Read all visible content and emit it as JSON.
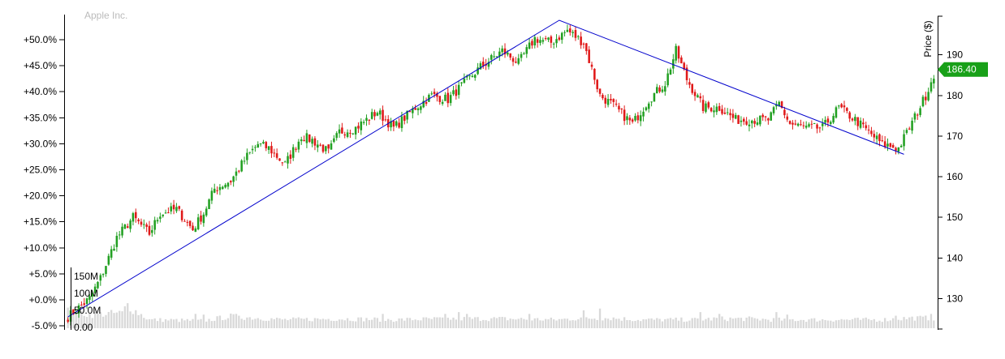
{
  "chart_data": {
    "type": "candlestick",
    "title": "Apple Inc.",
    "ylabel_right": "Price ($)",
    "ylim_price": [
      122.5,
      199.5
    ],
    "ylim_percent": [
      -5.0,
      54.0
    ],
    "left_ticks": [
      "+50.0%",
      "+45.0%",
      "+40.0%",
      "+35.0%",
      "+30.0%",
      "+25.0%",
      "+20.0%",
      "+15.0%",
      "+10.0%",
      "+5.0%",
      "+0.0%",
      "-5.0%"
    ],
    "right_ticks": [
      190,
      180,
      170,
      160,
      150,
      140,
      130
    ],
    "volume_ticks": [
      "150M",
      "100M",
      "50.0M",
      "0.00"
    ],
    "volume_ylim": [
      0,
      170
    ],
    "last_price_label": "186.40",
    "last_price": 186.4,
    "colors": {
      "up": "#22a022",
      "down": "#e01919",
      "volume": "#d9d9d9",
      "trendline": "#0000cc",
      "last_price_bg": "#18a018",
      "axis": "#000000",
      "title": "#bbbbbb"
    },
    "price_anchors": [
      [
        0,
        125.5
      ],
      [
        8,
        130
      ],
      [
        12,
        135
      ],
      [
        18,
        145
      ],
      [
        24,
        150
      ],
      [
        30,
        146
      ],
      [
        34,
        151
      ],
      [
        40,
        152
      ],
      [
        46,
        147
      ],
      [
        50,
        151
      ],
      [
        54,
        157
      ],
      [
        60,
        159
      ],
      [
        66,
        165
      ],
      [
        70,
        168
      ],
      [
        74,
        167
      ],
      [
        80,
        163
      ],
      [
        86,
        170
      ],
      [
        90,
        169
      ],
      [
        96,
        166
      ],
      [
        100,
        171
      ],
      [
        106,
        172
      ],
      [
        114,
        176
      ],
      [
        120,
        172
      ],
      [
        128,
        177
      ],
      [
        134,
        180
      ],
      [
        140,
        179
      ],
      [
        146,
        183
      ],
      [
        152,
        187
      ],
      [
        160,
        191
      ],
      [
        166,
        188
      ],
      [
        172,
        194
      ],
      [
        178,
        193
      ],
      [
        184,
        196
      ],
      [
        190,
        193
      ],
      [
        196,
        180
      ],
      [
        200,
        178
      ],
      [
        208,
        173
      ],
      [
        214,
        179
      ],
      [
        220,
        183
      ],
      [
        224,
        191
      ],
      [
        228,
        184
      ],
      [
        234,
        177
      ],
      [
        240,
        177
      ],
      [
        246,
        174
      ],
      [
        252,
        174
      ],
      [
        258,
        174
      ],
      [
        262,
        178
      ],
      [
        266,
        173
      ],
      [
        272,
        172
      ],
      [
        278,
        172
      ],
      [
        284,
        177
      ],
      [
        290,
        174
      ],
      [
        300,
        168
      ],
      [
        306,
        167
      ],
      [
        310,
        172
      ],
      [
        316,
        180
      ],
      [
        320,
        187
      ]
    ],
    "volume_anchors": [
      [
        0,
        55
      ],
      [
        8,
        40
      ],
      [
        20,
        45
      ],
      [
        22,
        70
      ],
      [
        24,
        55
      ],
      [
        30,
        25
      ],
      [
        50,
        22
      ],
      [
        60,
        35
      ],
      [
        80,
        25
      ],
      [
        100,
        28
      ],
      [
        120,
        25
      ],
      [
        140,
        28
      ],
      [
        160,
        28
      ],
      [
        180,
        25
      ],
      [
        190,
        30
      ],
      [
        200,
        30
      ],
      [
        210,
        25
      ],
      [
        230,
        25
      ],
      [
        240,
        28
      ],
      [
        250,
        28
      ],
      [
        260,
        25
      ],
      [
        280,
        25
      ],
      [
        300,
        25
      ],
      [
        310,
        30
      ],
      [
        320,
        30
      ]
    ],
    "volume_spikes": [
      [
        22,
        70
      ],
      [
        47,
        40
      ],
      [
        50,
        38
      ],
      [
        63,
        35
      ],
      [
        116,
        40
      ],
      [
        139,
        40
      ],
      [
        144,
        45
      ],
      [
        147,
        40
      ],
      [
        170,
        40
      ],
      [
        190,
        50
      ],
      [
        196,
        55
      ],
      [
        233,
        45
      ],
      [
        240,
        40
      ],
      [
        261,
        45
      ],
      [
        265,
        38
      ],
      [
        305,
        35
      ],
      [
        318,
        40
      ]
    ],
    "trendline": [
      [
        0,
        125.5
      ],
      [
        181,
        198.5
      ],
      [
        308,
        165.5
      ]
    ],
    "n_bars": 320,
    "seed": 7
  }
}
